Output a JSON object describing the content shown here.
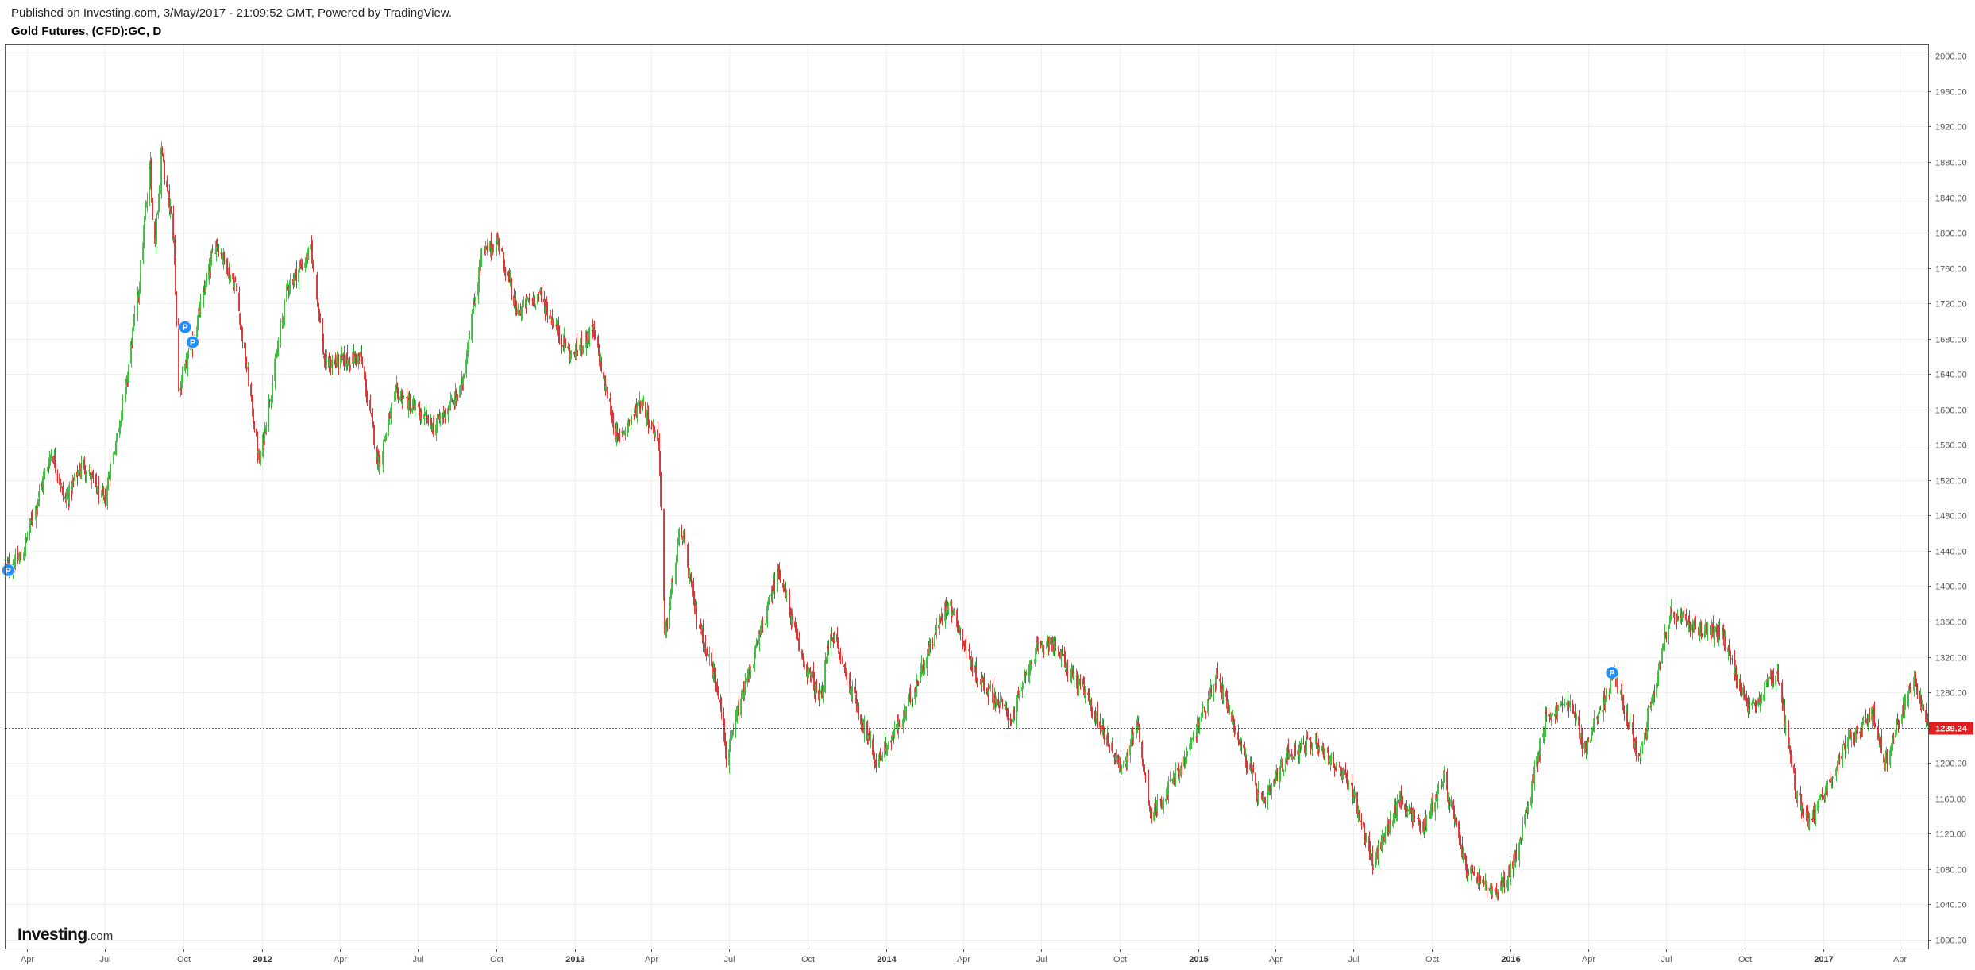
{
  "header": {
    "published": "Published on Investing.com, 3/May/2017 - 21:09:52 GMT, Powered by TradingView.",
    "symbol": "Gold Futures, (CFD):GC, D"
  },
  "logo": {
    "brand": "Investing",
    "domain": ".com"
  },
  "chart_data": {
    "type": "candlestick",
    "title": "Gold Futures, (CFD):GC, D",
    "interval": "D",
    "ylim": [
      990,
      2012
    ],
    "y_ticks": [
      1000,
      1040,
      1080,
      1120,
      1160,
      1200,
      1240,
      1280,
      1320,
      1360,
      1400,
      1440,
      1480,
      1520,
      1560,
      1600,
      1640,
      1680,
      1720,
      1760,
      1800,
      1840,
      1880,
      1920,
      1960,
      2000
    ],
    "y_tick_labels": [
      "1000.00",
      "1040.00",
      "1080.00",
      "1120.00",
      "1160.00",
      "1200.00",
      "1240.00",
      "1280.00",
      "1320.00",
      "1360.00",
      "1400.00",
      "1440.00",
      "1480.00",
      "1520.00",
      "1560.00",
      "1600.00",
      "1640.00",
      "1680.00",
      "1720.00",
      "1760.00",
      "1800.00",
      "1840.00",
      "1880.00",
      "1920.00",
      "1960.00",
      "2000.00"
    ],
    "x_range": [
      "2011-03-07",
      "2017-05-04"
    ],
    "x_ticks": [
      {
        "date": "2011-04-01",
        "label": "Apr",
        "bold": false
      },
      {
        "date": "2011-07-01",
        "label": "Jul",
        "bold": false
      },
      {
        "date": "2011-10-01",
        "label": "Oct",
        "bold": false
      },
      {
        "date": "2012-01-01",
        "label": "2012",
        "bold": true
      },
      {
        "date": "2012-04-01",
        "label": "Apr",
        "bold": false
      },
      {
        "date": "2012-07-01",
        "label": "Jul",
        "bold": false
      },
      {
        "date": "2012-10-01",
        "label": "Oct",
        "bold": false
      },
      {
        "date": "2013-01-01",
        "label": "2013",
        "bold": true
      },
      {
        "date": "2013-04-01",
        "label": "Apr",
        "bold": false
      },
      {
        "date": "2013-07-01",
        "label": "Jul",
        "bold": false
      },
      {
        "date": "2013-10-01",
        "label": "Oct",
        "bold": false
      },
      {
        "date": "2014-01-01",
        "label": "2014",
        "bold": true
      },
      {
        "date": "2014-04-01",
        "label": "Apr",
        "bold": false
      },
      {
        "date": "2014-07-01",
        "label": "Jul",
        "bold": false
      },
      {
        "date": "2014-10-01",
        "label": "Oct",
        "bold": false
      },
      {
        "date": "2015-01-01",
        "label": "2015",
        "bold": true
      },
      {
        "date": "2015-04-01",
        "label": "Apr",
        "bold": false
      },
      {
        "date": "2015-07-01",
        "label": "Jul",
        "bold": false
      },
      {
        "date": "2015-10-01",
        "label": "Oct",
        "bold": false
      },
      {
        "date": "2016-01-01",
        "label": "2016",
        "bold": true
      },
      {
        "date": "2016-04-01",
        "label": "Apr",
        "bold": false
      },
      {
        "date": "2016-07-01",
        "label": "Jul",
        "bold": false
      },
      {
        "date": "2016-10-01",
        "label": "Oct",
        "bold": false
      },
      {
        "date": "2017-01-01",
        "label": "2017",
        "bold": true
      },
      {
        "date": "2017-04-01",
        "label": "Apr",
        "bold": false
      }
    ],
    "price_path": [
      {
        "date": "2011-03-07",
        "price": 1420
      },
      {
        "date": "2011-03-25",
        "price": 1432
      },
      {
        "date": "2011-04-30",
        "price": 1555
      },
      {
        "date": "2011-05-15",
        "price": 1495
      },
      {
        "date": "2011-06-05",
        "price": 1540
      },
      {
        "date": "2011-06-30",
        "price": 1495
      },
      {
        "date": "2011-07-25",
        "price": 1620
      },
      {
        "date": "2011-08-10",
        "price": 1740
      },
      {
        "date": "2011-08-23",
        "price": 1880
      },
      {
        "date": "2011-08-28",
        "price": 1770
      },
      {
        "date": "2011-09-05",
        "price": 1895
      },
      {
        "date": "2011-09-20",
        "price": 1790
      },
      {
        "date": "2011-09-26",
        "price": 1620
      },
      {
        "date": "2011-10-10",
        "price": 1670
      },
      {
        "date": "2011-11-08",
        "price": 1790
      },
      {
        "date": "2011-12-01",
        "price": 1740
      },
      {
        "date": "2011-12-29",
        "price": 1540
      },
      {
        "date": "2012-01-31",
        "price": 1740
      },
      {
        "date": "2012-02-28",
        "price": 1780
      },
      {
        "date": "2012-03-15",
        "price": 1650
      },
      {
        "date": "2012-04-25",
        "price": 1660
      },
      {
        "date": "2012-05-16",
        "price": 1540
      },
      {
        "date": "2012-06-06",
        "price": 1620
      },
      {
        "date": "2012-07-20",
        "price": 1580
      },
      {
        "date": "2012-08-20",
        "price": 1620
      },
      {
        "date": "2012-09-14",
        "price": 1775
      },
      {
        "date": "2012-10-04",
        "price": 1790
      },
      {
        "date": "2012-10-25",
        "price": 1710
      },
      {
        "date": "2012-11-20",
        "price": 1730
      },
      {
        "date": "2012-12-28",
        "price": 1660
      },
      {
        "date": "2013-01-22",
        "price": 1690
      },
      {
        "date": "2013-02-20",
        "price": 1565
      },
      {
        "date": "2013-03-20",
        "price": 1610
      },
      {
        "date": "2013-04-10",
        "price": 1560
      },
      {
        "date": "2013-04-16",
        "price": 1340
      },
      {
        "date": "2013-05-05",
        "price": 1470
      },
      {
        "date": "2013-05-20",
        "price": 1380
      },
      {
        "date": "2013-06-20",
        "price": 1275
      },
      {
        "date": "2013-06-28",
        "price": 1200
      },
      {
        "date": "2013-07-10",
        "price": 1255
      },
      {
        "date": "2013-08-28",
        "price": 1420
      },
      {
        "date": "2013-09-20",
        "price": 1330
      },
      {
        "date": "2013-10-15",
        "price": 1270
      },
      {
        "date": "2013-10-28",
        "price": 1350
      },
      {
        "date": "2013-12-20",
        "price": 1200
      },
      {
        "date": "2014-01-20",
        "price": 1250
      },
      {
        "date": "2014-03-14",
        "price": 1385
      },
      {
        "date": "2014-04-15",
        "price": 1300
      },
      {
        "date": "2014-05-28",
        "price": 1250
      },
      {
        "date": "2014-06-20",
        "price": 1320
      },
      {
        "date": "2014-07-10",
        "price": 1340
      },
      {
        "date": "2014-08-20",
        "price": 1280
      },
      {
        "date": "2014-10-05",
        "price": 1190
      },
      {
        "date": "2014-10-20",
        "price": 1250
      },
      {
        "date": "2014-11-07",
        "price": 1140
      },
      {
        "date": "2014-12-15",
        "price": 1200
      },
      {
        "date": "2015-01-22",
        "price": 1300
      },
      {
        "date": "2015-03-17",
        "price": 1150
      },
      {
        "date": "2015-04-15",
        "price": 1210
      },
      {
        "date": "2015-05-18",
        "price": 1225
      },
      {
        "date": "2015-06-30",
        "price": 1170
      },
      {
        "date": "2015-07-24",
        "price": 1085
      },
      {
        "date": "2015-08-25",
        "price": 1160
      },
      {
        "date": "2015-09-20",
        "price": 1125
      },
      {
        "date": "2015-10-15",
        "price": 1185
      },
      {
        "date": "2015-11-10",
        "price": 1080
      },
      {
        "date": "2015-12-17",
        "price": 1050
      },
      {
        "date": "2016-01-10",
        "price": 1100
      },
      {
        "date": "2016-02-11",
        "price": 1250
      },
      {
        "date": "2016-03-10",
        "price": 1270
      },
      {
        "date": "2016-03-28",
        "price": 1215
      },
      {
        "date": "2016-05-02",
        "price": 1300
      },
      {
        "date": "2016-05-30",
        "price": 1205
      },
      {
        "date": "2016-07-06",
        "price": 1370
      },
      {
        "date": "2016-08-02",
        "price": 1355
      },
      {
        "date": "2016-09-05",
        "price": 1345
      },
      {
        "date": "2016-10-07",
        "price": 1255
      },
      {
        "date": "2016-11-08",
        "price": 1305
      },
      {
        "date": "2016-11-30",
        "price": 1170
      },
      {
        "date": "2016-12-15",
        "price": 1130
      },
      {
        "date": "2017-01-25",
        "price": 1215
      },
      {
        "date": "2017-02-27",
        "price": 1260
      },
      {
        "date": "2017-03-14",
        "price": 1200
      },
      {
        "date": "2017-04-17",
        "price": 1295
      },
      {
        "date": "2017-05-04",
        "price": 1239.24
      }
    ],
    "last_price": 1239.24,
    "last_price_label": "1239.24",
    "markers": [
      {
        "date": "2011-03-10",
        "price": 1418,
        "label": "P"
      },
      {
        "date": "2011-10-03",
        "price": 1693,
        "label": "P"
      },
      {
        "date": "2011-10-12",
        "price": 1676,
        "label": "P"
      },
      {
        "date": "2016-04-29",
        "price": 1302,
        "label": "P"
      }
    ],
    "colors": {
      "up": "#3fbf3f",
      "down": "#d93535",
      "marker": "#1e90ff",
      "last_price": "#e31d1d",
      "grid": "#f0f0f0",
      "frame": "#555555"
    },
    "grid": true
  }
}
